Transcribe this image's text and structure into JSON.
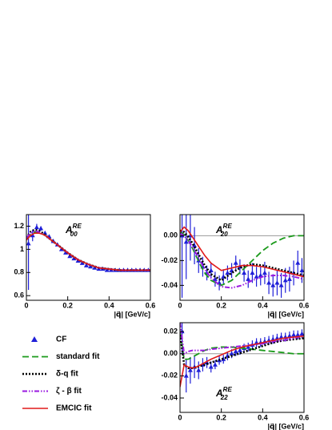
{
  "chart_data": [
    {
      "type": "line",
      "annotation": {
        "base": "A",
        "sub": "00",
        "sup": "RE"
      },
      "xlabel": "|q⃗| [GeV/c]",
      "xlim": [
        0,
        0.6
      ],
      "xticks": [
        0,
        0.2,
        0.4,
        0.6
      ],
      "ylim": [
        0.56,
        1.3
      ],
      "yticks": [
        0.6,
        0.8,
        1,
        1.2
      ],
      "series": [
        {
          "name": "CF",
          "color": "#1f1fd8",
          "style": "markers",
          "x": [
            0.01,
            0.03,
            0.05,
            0.07,
            0.09,
            0.11,
            0.13,
            0.15,
            0.17,
            0.19,
            0.21,
            0.23,
            0.25,
            0.27,
            0.29,
            0.31,
            0.33,
            0.35,
            0.37,
            0.39,
            0.41,
            0.43,
            0.45,
            0.47,
            0.49,
            0.51,
            0.53,
            0.55,
            0.57,
            0.59
          ],
          "values": [
            1.05,
            1.12,
            1.19,
            1.18,
            1.14,
            1.11,
            1.07,
            1.04,
            1.0,
            0.97,
            0.94,
            0.92,
            0.9,
            0.88,
            0.86,
            0.85,
            0.84,
            0.83,
            0.83,
            0.82,
            0.82,
            0.82,
            0.82,
            0.82,
            0.82,
            0.82,
            0.82,
            0.82,
            0.82,
            0.82
          ],
          "errors": [
            0.4,
            0.05,
            0.03,
            0.02,
            0.015,
            0.012,
            0.01,
            0.01,
            0.01,
            0.01,
            0.01,
            0.01,
            0.01,
            0.01,
            0.01,
            0.01,
            0.01,
            0.01,
            0.01,
            0.01,
            0.01,
            0.01,
            0.01,
            0.01,
            0.01,
            0.01,
            0.01,
            0.01,
            0.01,
            0.01
          ]
        },
        {
          "name": "standard fit",
          "color": "#1a9a1a",
          "style": "dashed",
          "x": [
            0,
            0.02,
            0.04,
            0.06,
            0.08,
            0.1,
            0.12,
            0.15,
            0.2,
            0.25,
            0.3,
            0.35,
            0.4,
            0.45,
            0.5,
            0.55,
            0.6
          ],
          "values": [
            1.09,
            1.13,
            1.15,
            1.15,
            1.13,
            1.11,
            1.08,
            1.04,
            0.97,
            0.91,
            0.87,
            0.84,
            0.83,
            0.82,
            0.82,
            0.82,
            0.82
          ]
        },
        {
          "name": "δ-q fit",
          "color": "#000000",
          "style": "dotted",
          "x": [
            0,
            0.02,
            0.04,
            0.06,
            0.08,
            0.1,
            0.12,
            0.15,
            0.2,
            0.25,
            0.3,
            0.35,
            0.4,
            0.45,
            0.5,
            0.55,
            0.6
          ],
          "values": [
            1.1,
            1.15,
            1.17,
            1.16,
            1.14,
            1.11,
            1.08,
            1.04,
            0.97,
            0.91,
            0.87,
            0.84,
            0.83,
            0.82,
            0.82,
            0.82,
            0.82
          ]
        },
        {
          "name": "ζ - β fit",
          "color": "#9a1ae0",
          "style": "dashdot",
          "x": [
            0,
            0.02,
            0.04,
            0.06,
            0.08,
            0.1,
            0.12,
            0.15,
            0.2,
            0.25,
            0.3,
            0.35,
            0.4,
            0.45,
            0.5,
            0.55,
            0.6
          ],
          "values": [
            1.1,
            1.14,
            1.16,
            1.15,
            1.13,
            1.11,
            1.08,
            1.04,
            0.97,
            0.91,
            0.87,
            0.84,
            0.83,
            0.82,
            0.82,
            0.82,
            0.82
          ]
        },
        {
          "name": "EMCIC fit",
          "color": "#e01a1a",
          "style": "solid",
          "x": [
            0,
            0.02,
            0.04,
            0.06,
            0.08,
            0.1,
            0.12,
            0.15,
            0.2,
            0.25,
            0.3,
            0.35,
            0.4,
            0.45,
            0.5,
            0.55,
            0.6
          ],
          "values": [
            1.08,
            1.12,
            1.14,
            1.14,
            1.13,
            1.11,
            1.08,
            1.04,
            0.97,
            0.91,
            0.87,
            0.84,
            0.83,
            0.82,
            0.82,
            0.82,
            0.82
          ]
        }
      ]
    },
    {
      "type": "line",
      "annotation": {
        "base": "A",
        "sub": "20",
        "sup": "RE"
      },
      "xlabel": "|q⃗| [GeV/c]",
      "xlim": [
        0,
        0.6
      ],
      "xticks": [
        0,
        0.2,
        0.4,
        0.6
      ],
      "ylim": [
        -0.052,
        0.017
      ],
      "yticks": [
        {
          "value": 0,
          "label": "0.00"
        },
        -0.02,
        -0.04
      ],
      "series": [
        {
          "color": "#1f1fd8",
          "style": "markers",
          "x": [
            0.01,
            0.03,
            0.05,
            0.07,
            0.09,
            0.11,
            0.13,
            0.15,
            0.17,
            0.19,
            0.21,
            0.23,
            0.25,
            0.27,
            0.29,
            0.31,
            0.33,
            0.35,
            0.37,
            0.39,
            0.41,
            0.43,
            0.45,
            0.47,
            0.49,
            0.51,
            0.53,
            0.55,
            0.57,
            0.59
          ],
          "values": [
            0.0,
            -0.005,
            0.0,
            -0.008,
            -0.02,
            -0.025,
            -0.03,
            -0.028,
            -0.035,
            -0.038,
            -0.033,
            -0.03,
            -0.028,
            -0.022,
            -0.025,
            -0.03,
            -0.035,
            -0.03,
            -0.033,
            -0.032,
            -0.03,
            -0.038,
            -0.04,
            -0.038,
            -0.04,
            -0.036,
            -0.035,
            -0.03,
            -0.022,
            -0.028
          ],
          "errors": [
            0.05,
            0.03,
            0.02,
            0.015,
            0.01,
            0.008,
            0.006,
            0.006,
            0.006,
            0.006,
            0.006,
            0.006,
            0.006,
            0.006,
            0.006,
            0.007,
            0.007,
            0.008,
            0.008,
            0.008,
            0.009,
            0.009,
            0.009,
            0.01,
            0.01,
            0.01,
            0.01,
            0.01,
            0.01,
            0.01
          ]
        },
        {
          "color": "#1a9a1a",
          "style": "dashed",
          "x": [
            0,
            0.02,
            0.04,
            0.06,
            0.08,
            0.1,
            0.12,
            0.15,
            0.2,
            0.25,
            0.3,
            0.35,
            0.4,
            0.45,
            0.5,
            0.55,
            0.6
          ],
          "values": [
            0.003,
            0.001,
            -0.004,
            -0.01,
            -0.017,
            -0.024,
            -0.03,
            -0.036,
            -0.04,
            -0.036,
            -0.028,
            -0.02,
            -0.012,
            -0.006,
            -0.002,
            0.0,
            0.0
          ]
        },
        {
          "color": "#000000",
          "style": "dotted",
          "x": [
            0,
            0.02,
            0.04,
            0.06,
            0.08,
            0.1,
            0.12,
            0.15,
            0.2,
            0.25,
            0.3,
            0.35,
            0.4,
            0.45,
            0.5,
            0.55,
            0.6
          ],
          "values": [
            0.004,
            0.003,
            -0.001,
            -0.006,
            -0.012,
            -0.018,
            -0.024,
            -0.031,
            -0.036,
            -0.03,
            -0.025,
            -0.023,
            -0.024,
            -0.026,
            -0.028,
            -0.03,
            -0.032
          ]
        },
        {
          "color": "#9a1ae0",
          "style": "dashdot",
          "x": [
            0,
            0.02,
            0.04,
            0.06,
            0.08,
            0.1,
            0.12,
            0.15,
            0.2,
            0.25,
            0.3,
            0.35,
            0.4,
            0.45,
            0.5,
            0.55,
            0.6
          ],
          "values": [
            0.002,
            0.0,
            -0.004,
            -0.009,
            -0.015,
            -0.021,
            -0.027,
            -0.034,
            -0.041,
            -0.042,
            -0.04,
            -0.036,
            -0.033,
            -0.032,
            -0.032,
            -0.033,
            -0.035
          ]
        },
        {
          "color": "#e01a1a",
          "style": "solid",
          "x": [
            0,
            0.02,
            0.04,
            0.06,
            0.08,
            0.1,
            0.12,
            0.15,
            0.2,
            0.25,
            0.3,
            0.35,
            0.4,
            0.45,
            0.5,
            0.55,
            0.6
          ],
          "values": [
            0.003,
            0.007,
            0.004,
            -0.001,
            -0.006,
            -0.011,
            -0.016,
            -0.022,
            -0.028,
            -0.026,
            -0.024,
            -0.024,
            -0.025,
            -0.027,
            -0.029,
            -0.031,
            -0.033
          ]
        }
      ]
    },
    {
      "type": "line",
      "annotation": {
        "base": "A",
        "sub": "22",
        "sup": "RE"
      },
      "xlabel": "|q⃗| [GeV/c]",
      "xlim": [
        0,
        0.6
      ],
      "xticks": [
        0,
        0.2,
        0.4,
        0.6
      ],
      "ylim": [
        -0.053,
        0.028
      ],
      "yticks": [
        0.02,
        {
          "value": 0,
          "label": "0.00"
        },
        -0.02,
        -0.04
      ],
      "series": [
        {
          "color": "#1f1fd8",
          "style": "markers",
          "x": [
            0.01,
            0.03,
            0.05,
            0.07,
            0.09,
            0.11,
            0.13,
            0.15,
            0.17,
            0.19,
            0.21,
            0.23,
            0.25,
            0.27,
            0.29,
            0.31,
            0.33,
            0.35,
            0.37,
            0.39,
            0.41,
            0.43,
            0.45,
            0.47,
            0.49,
            0.51,
            0.53,
            0.55,
            0.57,
            0.59
          ],
          "values": [
            0.02,
            -0.02,
            -0.015,
            -0.012,
            -0.015,
            -0.01,
            -0.008,
            -0.012,
            -0.01,
            -0.006,
            -0.005,
            -0.002,
            0.0,
            0.002,
            0.003,
            0.005,
            0.006,
            0.008,
            0.01,
            0.01,
            0.011,
            0.012,
            0.013,
            0.014,
            0.015,
            0.015,
            0.016,
            0.017,
            0.017,
            0.018
          ],
          "errors": [
            0.02,
            0.015,
            0.012,
            0.01,
            0.008,
            0.006,
            0.005,
            0.005,
            0.004,
            0.004,
            0.004,
            0.004,
            0.004,
            0.004,
            0.004,
            0.004,
            0.004,
            0.004,
            0.004,
            0.004,
            0.004,
            0.004,
            0.004,
            0.004,
            0.004,
            0.004,
            0.004,
            0.004,
            0.004,
            0.004
          ]
        },
        {
          "color": "#1a9a1a",
          "style": "dashed",
          "x": [
            0,
            0.02,
            0.04,
            0.06,
            0.08,
            0.1,
            0.12,
            0.15,
            0.2,
            0.25,
            0.3,
            0.35,
            0.4,
            0.45,
            0.5,
            0.55,
            0.6
          ],
          "values": [
            0.02,
            -0.005,
            -0.005,
            -0.003,
            -0.001,
            0.001,
            0.003,
            0.005,
            0.006,
            0.006,
            0.005,
            0.004,
            0.003,
            0.002,
            0.001,
            0.0,
            0.0
          ]
        },
        {
          "color": "#000000",
          "style": "dotted",
          "x": [
            0,
            0.02,
            0.04,
            0.06,
            0.08,
            0.1,
            0.12,
            0.15,
            0.2,
            0.25,
            0.3,
            0.35,
            0.4,
            0.45,
            0.5,
            0.55,
            0.6
          ],
          "values": [
            0.02,
            -0.01,
            -0.013,
            -0.013,
            -0.012,
            -0.011,
            -0.01,
            -0.008,
            -0.005,
            -0.002,
            0.001,
            0.004,
            0.007,
            0.01,
            0.012,
            0.013,
            0.014
          ]
        },
        {
          "color": "#9a1ae0",
          "style": "dashdot",
          "x": [
            0,
            0.02,
            0.04,
            0.06,
            0.08,
            0.1,
            0.12,
            0.15,
            0.2,
            0.25,
            0.3,
            0.35,
            0.4,
            0.45,
            0.5,
            0.55,
            0.6
          ],
          "values": [
            0.028,
            0.0,
            0.002,
            0.003,
            0.003,
            0.003,
            0.003,
            0.004,
            0.005,
            0.006,
            0.007,
            0.008,
            0.009,
            0.011,
            0.012,
            0.014,
            0.016
          ]
        },
        {
          "color": "#e01a1a",
          "style": "solid",
          "x": [
            0,
            0.02,
            0.04,
            0.06,
            0.08,
            0.1,
            0.12,
            0.15,
            0.2,
            0.25,
            0.3,
            0.35,
            0.4,
            0.45,
            0.5,
            0.55,
            0.6
          ],
          "values": [
            -0.03,
            -0.01,
            -0.012,
            -0.013,
            -0.012,
            -0.01,
            -0.008,
            -0.005,
            -0.001,
            0.003,
            0.006,
            0.008,
            0.01,
            0.012,
            0.014,
            0.015,
            0.016
          ]
        }
      ]
    }
  ]
}
